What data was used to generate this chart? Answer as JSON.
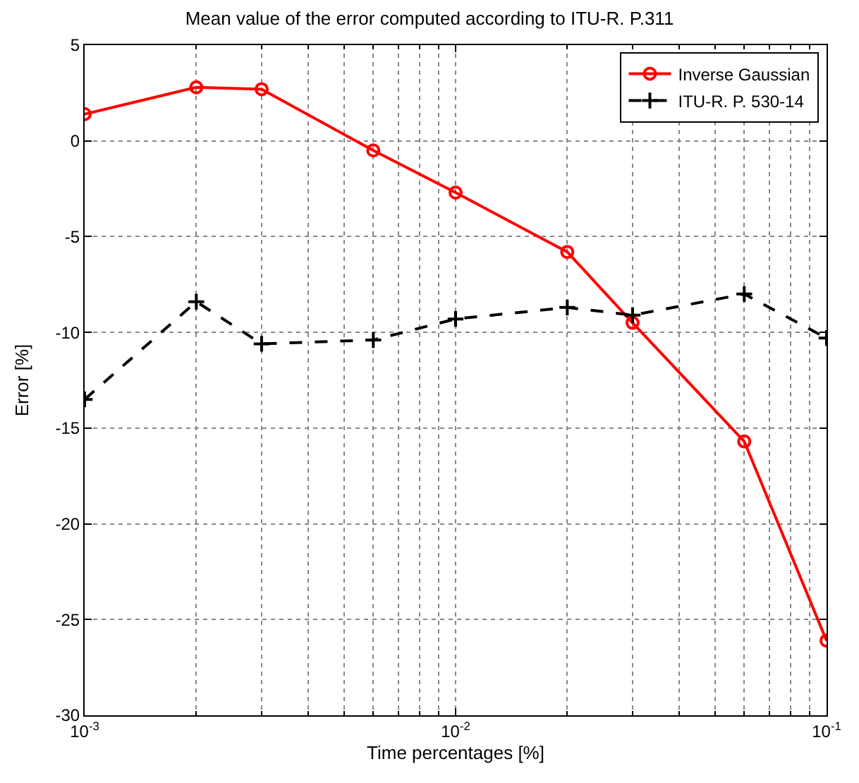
{
  "chart_data": {
    "type": "line",
    "title": "Mean value of the error computed according to ITU-R. P.311",
    "xlabel": "Time percentages [%]",
    "ylabel": "Error [%]",
    "x": [
      0.001,
      0.002,
      0.003,
      0.006,
      0.01,
      0.02,
      0.03,
      0.06,
      0.1
    ],
    "series": [
      {
        "name": "Inverse Gaussian",
        "color": "#ff0000",
        "marker": "circle",
        "line_style": "solid",
        "values": [
          1.4,
          2.8,
          2.7,
          -0.5,
          -2.7,
          -5.8,
          -9.5,
          -15.7,
          -26.1
        ]
      },
      {
        "name": "ITU-R. P. 530-14",
        "color": "#000000",
        "marker": "cross",
        "line_style": "dashed",
        "values": [
          -13.5,
          -8.4,
          -10.6,
          -10.4,
          -9.3,
          -8.7,
          -9.1,
          -8.0,
          -10.3
        ]
      }
    ],
    "log": "x",
    "xlim": [
      0.001,
      0.1
    ],
    "xticks": [
      {
        "value": 0.001,
        "label": "10$^{-3}$"
      },
      {
        "value": 0.01,
        "label": "10$^{-2}$"
      },
      {
        "value": 0.1,
        "label": "10$^{-1}$"
      }
    ],
    "ylim": [
      -30,
      5
    ],
    "yticks": [
      -30,
      -25,
      -20,
      -15,
      -10,
      -5,
      0,
      5
    ],
    "grid": true,
    "legend": "top right"
  }
}
